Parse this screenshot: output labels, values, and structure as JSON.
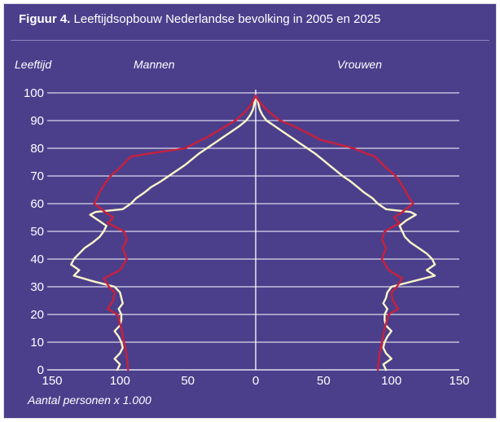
{
  "figure": {
    "title_lead": "Figuur 4.",
    "title_rest": " Leeftijdsopbouw Nederlandse bevolking in 2005 en 2025"
  },
  "chart_data": {
    "type": "line",
    "orientation": "population-pyramid",
    "ylabel": "Leeftijd",
    "xlabel": "Aantal personen x 1.000",
    "left_label": "Mannen",
    "right_label": "Vrouwen",
    "ylim": [
      0,
      100
    ],
    "xlim": [
      -150,
      150
    ],
    "y_ticks": [
      "0",
      "10",
      "20",
      "30",
      "40",
      "50",
      "60",
      "70",
      "80",
      "90",
      "100"
    ],
    "x_ticks": [
      "150",
      "100",
      "50",
      "0",
      "50",
      "100",
      "150"
    ],
    "grid": "horizontal",
    "colors": {
      "background": "#4b3f8c",
      "series_2005": "#fbf6c8",
      "series_2025": "#c8203c",
      "axis": "#ffffff"
    },
    "series": [
      {
        "id": "2005",
        "color": "#fbf6c8",
        "age": [
          0,
          2,
          4,
          6,
          8,
          10,
          12,
          14,
          16,
          18,
          20,
          22,
          24,
          26,
          28,
          30,
          32,
          34,
          36,
          38,
          40,
          42,
          44,
          46,
          48,
          50,
          52,
          54,
          56,
          57,
          58,
          60,
          62,
          64,
          66,
          68,
          70,
          72,
          74,
          76,
          78,
          80,
          82,
          84,
          86,
          88,
          90,
          92,
          94,
          96,
          98,
          99
        ],
        "men": [
          -102,
          -100,
          -104,
          -100,
          -98,
          -99,
          -101,
          -104,
          -100,
          -99,
          -99,
          -101,
          -98,
          -99,
          -100,
          -104,
          -120,
          -134,
          -130,
          -136,
          -134,
          -130,
          -126,
          -120,
          -115,
          -112,
          -110,
          -116,
          -122,
          -118,
          -98,
          -92,
          -88,
          -82,
          -77,
          -70,
          -64,
          -58,
          -52,
          -47,
          -42,
          -36,
          -30,
          -24,
          -18,
          -12,
          -7,
          -4,
          -2,
          -1,
          -1,
          0
        ],
        "women": [
          96,
          94,
          100,
          96,
          94,
          95,
          97,
          100,
          96,
          95,
          95,
          97,
          94,
          96,
          97,
          100,
          116,
          132,
          126,
          132,
          130,
          126,
          120,
          114,
          110,
          108,
          106,
          111,
          118,
          114,
          96,
          90,
          86,
          80,
          75,
          70,
          64,
          59,
          54,
          49,
          44,
          38,
          32,
          26,
          20,
          14,
          8,
          5,
          3,
          2,
          1,
          0
        ]
      },
      {
        "id": "2025",
        "color": "#c8203c",
        "age": [
          0,
          5,
          10,
          15,
          20,
          22,
          25,
          28,
          30,
          33,
          36,
          40,
          44,
          47,
          50,
          53,
          55,
          57,
          60,
          63,
          65,
          68,
          70,
          73,
          75,
          77,
          78,
          80,
          83,
          85,
          88,
          90,
          93,
          96,
          98,
          99
        ],
        "men": [
          -94,
          -95,
          -97,
          -99,
          -102,
          -109,
          -105,
          -104,
          -108,
          -112,
          -100,
          -95,
          -98,
          -95,
          -97,
          -109,
          -105,
          -111,
          -119,
          -116,
          -114,
          -110,
          -107,
          -100,
          -96,
          -92,
          -80,
          -52,
          -40,
          -32,
          -22,
          -15,
          -8,
          -3,
          -1,
          0
        ],
        "women": [
          90,
          91,
          93,
          95,
          98,
          105,
          101,
          100,
          104,
          108,
          98,
          93,
          96,
          93,
          95,
          106,
          102,
          108,
          116,
          112,
          110,
          106,
          103,
          96,
          92,
          88,
          82,
          72,
          48,
          40,
          28,
          18,
          10,
          4,
          1,
          0
        ]
      }
    ]
  }
}
